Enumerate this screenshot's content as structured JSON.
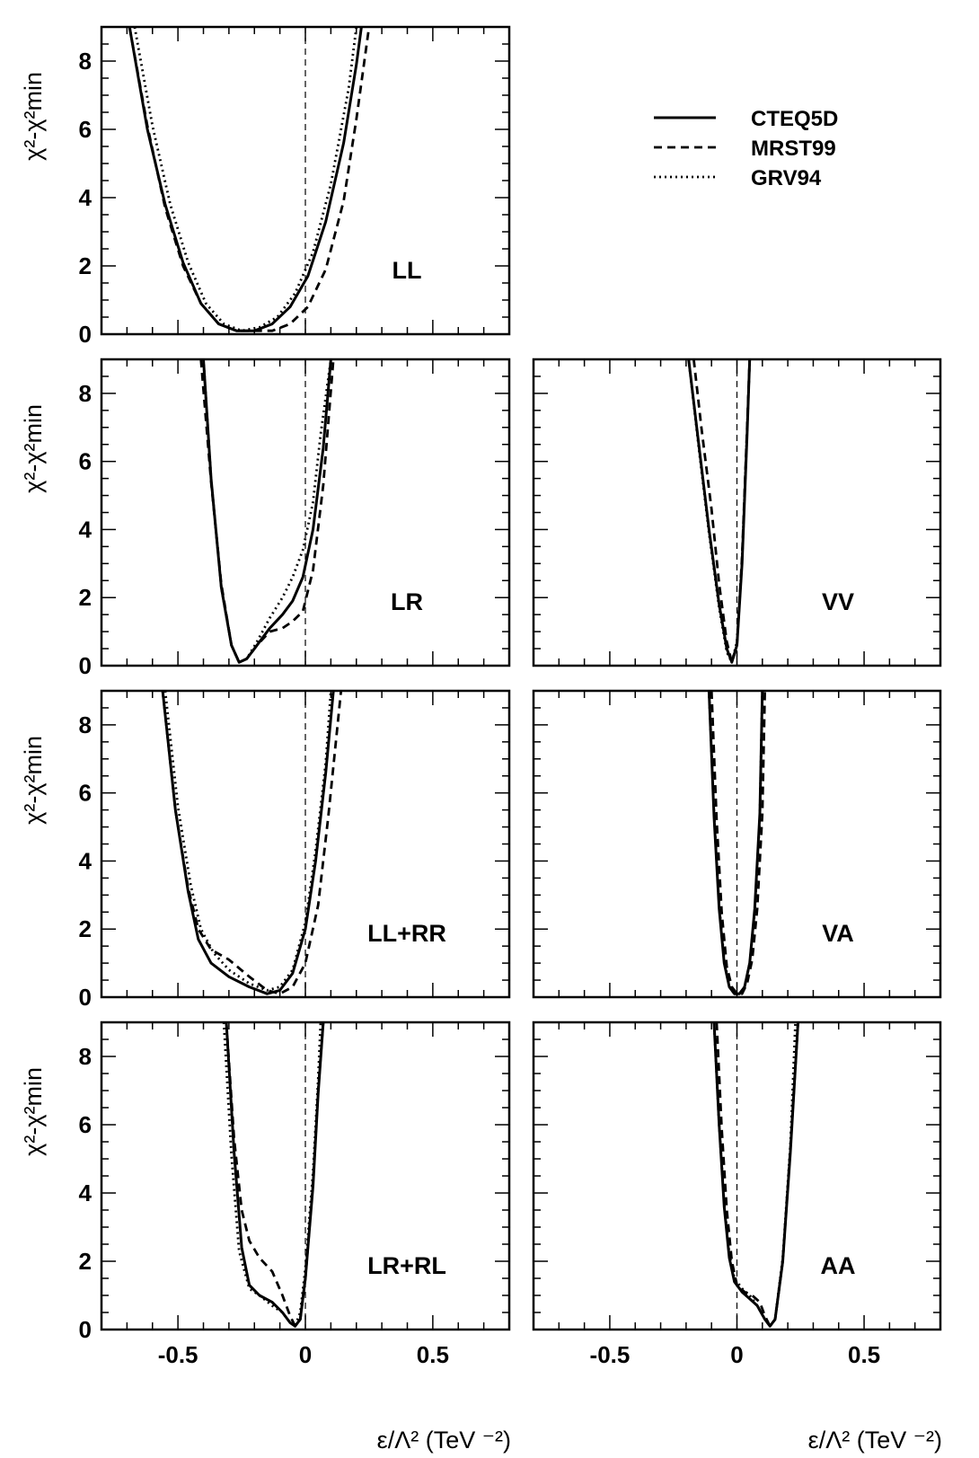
{
  "chart_data": {
    "type": "line",
    "xlabel": "ε/Λ²   (TeV ⁻²)",
    "ylabel": "χ²-χ²min",
    "xlim": [
      -0.8,
      0.8
    ],
    "ylim": [
      0,
      9
    ],
    "x_ticks": [
      "-0.5",
      "0",
      "0.5"
    ],
    "y_ticks": [
      "0",
      "2",
      "4",
      "6",
      "8"
    ],
    "legend": {
      "position": "top-right",
      "entries": [
        {
          "name": "CTEQ5D",
          "style": "solid"
        },
        {
          "name": "MRST99",
          "style": "dashed"
        },
        {
          "name": "GRV94",
          "style": "dotted"
        }
      ]
    },
    "panels": [
      {
        "label": "LL",
        "series": [
          {
            "name": "CTEQ5D",
            "x": [
              -0.69,
              -0.62,
              -0.55,
              -0.48,
              -0.41,
              -0.34,
              -0.27,
              -0.2,
              -0.13,
              -0.06,
              0.01,
              0.08,
              0.15,
              0.2,
              0.22
            ],
            "y": [
              9.0,
              6.0,
              3.8,
              2.1,
              0.9,
              0.3,
              0.1,
              0.1,
              0.3,
              0.8,
              1.7,
              3.3,
              5.6,
              7.9,
              9.0
            ]
          },
          {
            "name": "MRST99",
            "x": [
              -0.69,
              -0.62,
              -0.55,
              -0.48,
              -0.41,
              -0.34,
              -0.27,
              -0.2,
              -0.13,
              -0.06,
              0.01,
              0.08,
              0.15,
              0.2,
              0.25
            ],
            "y": [
              9.0,
              6.1,
              3.7,
              2.0,
              0.9,
              0.3,
              0.1,
              0.1,
              0.1,
              0.3,
              0.8,
              1.9,
              3.9,
              6.3,
              9.0
            ]
          },
          {
            "name": "GRV94",
            "x": [
              -0.67,
              -0.6,
              -0.53,
              -0.46,
              -0.39,
              -0.32,
              -0.25,
              -0.18,
              -0.11,
              -0.04,
              0.03,
              0.1,
              0.17,
              0.2
            ],
            "y": [
              9.0,
              6.1,
              3.8,
              2.1,
              0.9,
              0.3,
              0.1,
              0.2,
              0.5,
              1.2,
              2.4,
              4.4,
              7.2,
              9.0
            ]
          }
        ]
      },
      {
        "label": "LR",
        "series": [
          {
            "name": "CTEQ5D",
            "x": [
              -0.4,
              -0.37,
              -0.33,
              -0.29,
              -0.26,
              -0.23,
              -0.19,
              -0.14,
              -0.09,
              -0.05,
              -0.01,
              0.03,
              0.07,
              0.1
            ],
            "y": [
              9.0,
              5.5,
              2.3,
              0.6,
              0.1,
              0.2,
              0.6,
              1.1,
              1.5,
              1.9,
              2.6,
              4.0,
              6.4,
              9.0
            ]
          },
          {
            "name": "MRST99",
            "x": [
              -0.41,
              -0.37,
              -0.33,
              -0.29,
              -0.26,
              -0.23,
              -0.19,
              -0.14,
              -0.09,
              -0.05,
              -0.01,
              0.03,
              0.07,
              0.11
            ],
            "y": [
              9.0,
              5.4,
              2.4,
              0.6,
              0.1,
              0.2,
              0.6,
              1.0,
              1.1,
              1.3,
              1.6,
              2.8,
              5.3,
              9.0
            ]
          },
          {
            "name": "GRV94",
            "x": [
              -0.4,
              -0.37,
              -0.33,
              -0.29,
              -0.26,
              -0.23,
              -0.19,
              -0.14,
              -0.09,
              -0.05,
              -0.01,
              0.03,
              0.06,
              0.1
            ],
            "y": [
              9.0,
              5.5,
              2.3,
              0.6,
              0.1,
              0.2,
              0.7,
              1.4,
              2.0,
              2.6,
              3.4,
              4.8,
              6.8,
              9.0
            ]
          }
        ]
      },
      {
        "label": "VV",
        "series": [
          {
            "name": "CTEQ5D",
            "x": [
              -0.19,
              -0.15,
              -0.11,
              -0.07,
              -0.04,
              -0.02,
              0.0,
              0.02,
              0.04,
              0.05
            ],
            "y": [
              9.0,
              6.5,
              4.0,
              1.8,
              0.5,
              0.1,
              0.6,
              3.0,
              6.8,
              9.0
            ]
          },
          {
            "name": "MRST99",
            "x": [
              -0.17,
              -0.14,
              -0.1,
              -0.07,
              -0.04,
              -0.02,
              0.0,
              0.02,
              0.04,
              0.05
            ],
            "y": [
              9.0,
              7.0,
              4.6,
              2.4,
              0.7,
              0.1,
              0.6,
              3.2,
              7.0,
              9.0
            ]
          },
          {
            "name": "GRV94",
            "x": [
              -0.19,
              -0.15,
              -0.11,
              -0.07,
              -0.04,
              -0.02,
              0.0,
              0.02,
              0.04,
              0.05
            ],
            "y": [
              9.0,
              6.4,
              3.9,
              1.7,
              0.4,
              0.1,
              0.7,
              3.1,
              6.9,
              9.0
            ]
          }
        ]
      },
      {
        "label": "LL+RR",
        "series": [
          {
            "name": "CTEQ5D",
            "x": [
              -0.56,
              -0.51,
              -0.46,
              -0.42,
              -0.37,
              -0.3,
              -0.22,
              -0.15,
              -0.1,
              -0.05,
              0.0,
              0.04,
              0.08,
              0.11
            ],
            "y": [
              9.0,
              5.5,
              3.1,
              1.7,
              1.0,
              0.6,
              0.3,
              0.1,
              0.2,
              0.7,
              2.0,
              4.0,
              6.6,
              9.0
            ]
          },
          {
            "name": "MRST99",
            "x": [
              -0.56,
              -0.51,
              -0.46,
              -0.42,
              -0.37,
              -0.3,
              -0.22,
              -0.15,
              -0.1,
              -0.05,
              0.0,
              0.05,
              0.09,
              0.14
            ],
            "y": [
              9.0,
              5.5,
              3.2,
              2.0,
              1.4,
              1.1,
              0.6,
              0.2,
              0.1,
              0.3,
              1.0,
              2.7,
              5.3,
              9.0
            ]
          },
          {
            "name": "GRV94",
            "x": [
              -0.55,
              -0.5,
              -0.45,
              -0.41,
              -0.36,
              -0.3,
              -0.22,
              -0.15,
              -0.1,
              -0.05,
              0.0,
              0.04,
              0.08,
              0.1
            ],
            "y": [
              9.0,
              5.6,
              3.3,
              2.0,
              1.3,
              0.8,
              0.4,
              0.2,
              0.3,
              0.8,
              2.2,
              4.3,
              6.9,
              9.0
            ]
          }
        ]
      },
      {
        "label": "VA",
        "series": [
          {
            "name": "CTEQ5D",
            "x": [
              -0.11,
              -0.09,
              -0.07,
              -0.05,
              -0.03,
              -0.01,
              0.01,
              0.03,
              0.05,
              0.07,
              0.09,
              0.1
            ],
            "y": [
              9.0,
              5.3,
              2.6,
              1.0,
              0.3,
              0.1,
              0.1,
              0.3,
              1.0,
              2.6,
              5.4,
              9.0
            ]
          },
          {
            "name": "MRST99",
            "x": [
              -0.1,
              -0.08,
              -0.06,
              -0.04,
              -0.02,
              0.0,
              0.02,
              0.04,
              0.06,
              0.08,
              0.1,
              0.11
            ],
            "y": [
              9.0,
              5.2,
              2.5,
              0.9,
              0.3,
              0.1,
              0.1,
              0.4,
              1.1,
              2.6,
              5.4,
              9.0
            ]
          },
          {
            "name": "GRV94",
            "x": [
              -0.11,
              -0.09,
              -0.07,
              -0.05,
              -0.03,
              -0.01,
              0.01,
              0.03,
              0.05,
              0.07,
              0.09,
              0.1
            ],
            "y": [
              9.0,
              5.4,
              2.7,
              1.1,
              0.3,
              0.1,
              0.1,
              0.3,
              1.0,
              2.5,
              5.3,
              9.0
            ]
          }
        ]
      },
      {
        "label": "LR+RL",
        "series": [
          {
            "name": "CTEQ5D",
            "x": [
              -0.31,
              -0.28,
              -0.25,
              -0.22,
              -0.18,
              -0.13,
              -0.09,
              -0.06,
              -0.04,
              -0.02,
              0.0,
              0.03,
              0.05,
              0.07
            ],
            "y": [
              9.0,
              5.2,
              2.4,
              1.3,
              1.0,
              0.8,
              0.5,
              0.2,
              0.1,
              0.3,
              1.5,
              4.2,
              6.9,
              9.0
            ]
          },
          {
            "name": "MRST99",
            "x": [
              -0.31,
              -0.28,
              -0.25,
              -0.22,
              -0.18,
              -0.13,
              -0.09,
              -0.06,
              -0.04,
              -0.02,
              0.0,
              0.03,
              0.05,
              0.07
            ],
            "y": [
              9.0,
              5.6,
              3.5,
              2.6,
              2.1,
              1.7,
              1.0,
              0.4,
              0.1,
              0.3,
              1.5,
              4.3,
              7.0,
              9.0
            ]
          },
          {
            "name": "GRV94",
            "x": [
              -0.32,
              -0.29,
              -0.26,
              -0.22,
              -0.18,
              -0.13,
              -0.09,
              -0.06,
              -0.04,
              -0.02,
              0.0,
              0.03,
              0.05,
              0.06
            ],
            "y": [
              9.0,
              5.1,
              2.3,
              1.2,
              1.0,
              0.7,
              0.5,
              0.2,
              0.1,
              0.5,
              1.8,
              4.6,
              7.3,
              9.0
            ]
          }
        ]
      },
      {
        "label": "AA",
        "series": [
          {
            "name": "CTEQ5D",
            "x": [
              -0.09,
              -0.07,
              -0.05,
              -0.03,
              -0.01,
              0.02,
              0.05,
              0.08,
              0.11,
              0.13,
              0.15,
              0.18,
              0.21,
              0.24
            ],
            "y": [
              9.0,
              6.0,
              3.6,
              2.1,
              1.4,
              1.1,
              0.9,
              0.7,
              0.3,
              0.1,
              0.3,
              2.0,
              5.2,
              9.0
            ]
          },
          {
            "name": "MRST99",
            "x": [
              -0.08,
              -0.06,
              -0.04,
              -0.02,
              0.0,
              0.03,
              0.06,
              0.09,
              0.11,
              0.13,
              0.15,
              0.18,
              0.21,
              0.24
            ],
            "y": [
              9.0,
              5.9,
              3.5,
              2.0,
              1.3,
              1.1,
              1.0,
              0.8,
              0.4,
              0.1,
              0.3,
              2.0,
              5.3,
              9.0
            ]
          },
          {
            "name": "GRV94",
            "x": [
              -0.09,
              -0.07,
              -0.05,
              -0.03,
              -0.01,
              0.02,
              0.05,
              0.08,
              0.11,
              0.13,
              0.15,
              0.18,
              0.21,
              0.23
            ],
            "y": [
              9.0,
              6.0,
              3.7,
              2.2,
              1.5,
              1.2,
              1.0,
              0.7,
              0.3,
              0.1,
              0.3,
              2.1,
              5.4,
              9.0
            ]
          }
        ]
      }
    ]
  }
}
